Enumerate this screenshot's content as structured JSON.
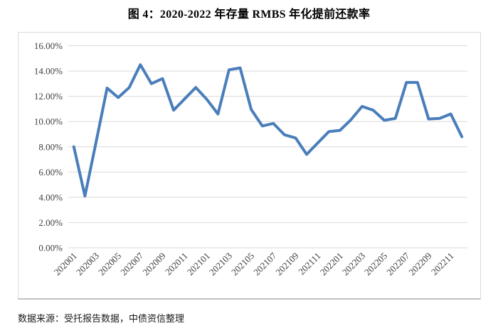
{
  "title": {
    "text": "图 4：2020-2022 年存量 RMBS 年化提前还款率"
  },
  "footer": {
    "source_note": "数据来源：受托报告数据，中债资信整理"
  },
  "colors": {
    "line": "#4a7ebb",
    "gridline": "#d9d9d9",
    "axis_label": "#3f3f3f",
    "chart_border": "#d9d9d9"
  },
  "chart_data": {
    "type": "line",
    "title": "图 4：2020-2022 年存量 RMBS 年化提前还款率",
    "xlabel": "",
    "ylabel": "",
    "x": [
      "202001",
      "202002",
      "202003",
      "202004",
      "202005",
      "202006",
      "202007",
      "202008",
      "202009",
      "202010",
      "202011",
      "202012",
      "202101",
      "202102",
      "202103",
      "202104",
      "202105",
      "202106",
      "202107",
      "202108",
      "202109",
      "202110",
      "202111",
      "202112",
      "202201",
      "202202",
      "202203",
      "202204",
      "202205",
      "202206",
      "202207",
      "202208",
      "202209",
      "202210",
      "202211",
      "202212"
    ],
    "series": [
      {
        "name": "存量RMBS年化提前还款率",
        "values": [
          8.0,
          4.1,
          8.35,
          12.65,
          11.9,
          12.7,
          14.5,
          13.0,
          13.4,
          10.9,
          11.8,
          12.7,
          11.75,
          10.6,
          14.1,
          14.25,
          10.95,
          9.65,
          9.85,
          8.95,
          8.7,
          7.4,
          8.3,
          9.2,
          9.3,
          10.15,
          11.2,
          10.9,
          10.1,
          10.25,
          13.1,
          13.1,
          10.2,
          10.25,
          10.6,
          8.8
        ]
      }
    ],
    "ylim": [
      0,
      16
    ],
    "ytick_step": 2,
    "ytick_labels": [
      "0.00%",
      "2.00%",
      "4.00%",
      "6.00%",
      "8.00%",
      "10.00%",
      "12.00%",
      "14.00%",
      "16.00%"
    ],
    "xtick_labels_shown": [
      "202001",
      "202003",
      "202005",
      "202007",
      "202009",
      "202011",
      "202101",
      "202103",
      "202105",
      "202107",
      "202109",
      "202111",
      "202201",
      "202203",
      "202205",
      "202207",
      "202209",
      "202211"
    ],
    "grid": "horizontal",
    "legend": "none"
  }
}
